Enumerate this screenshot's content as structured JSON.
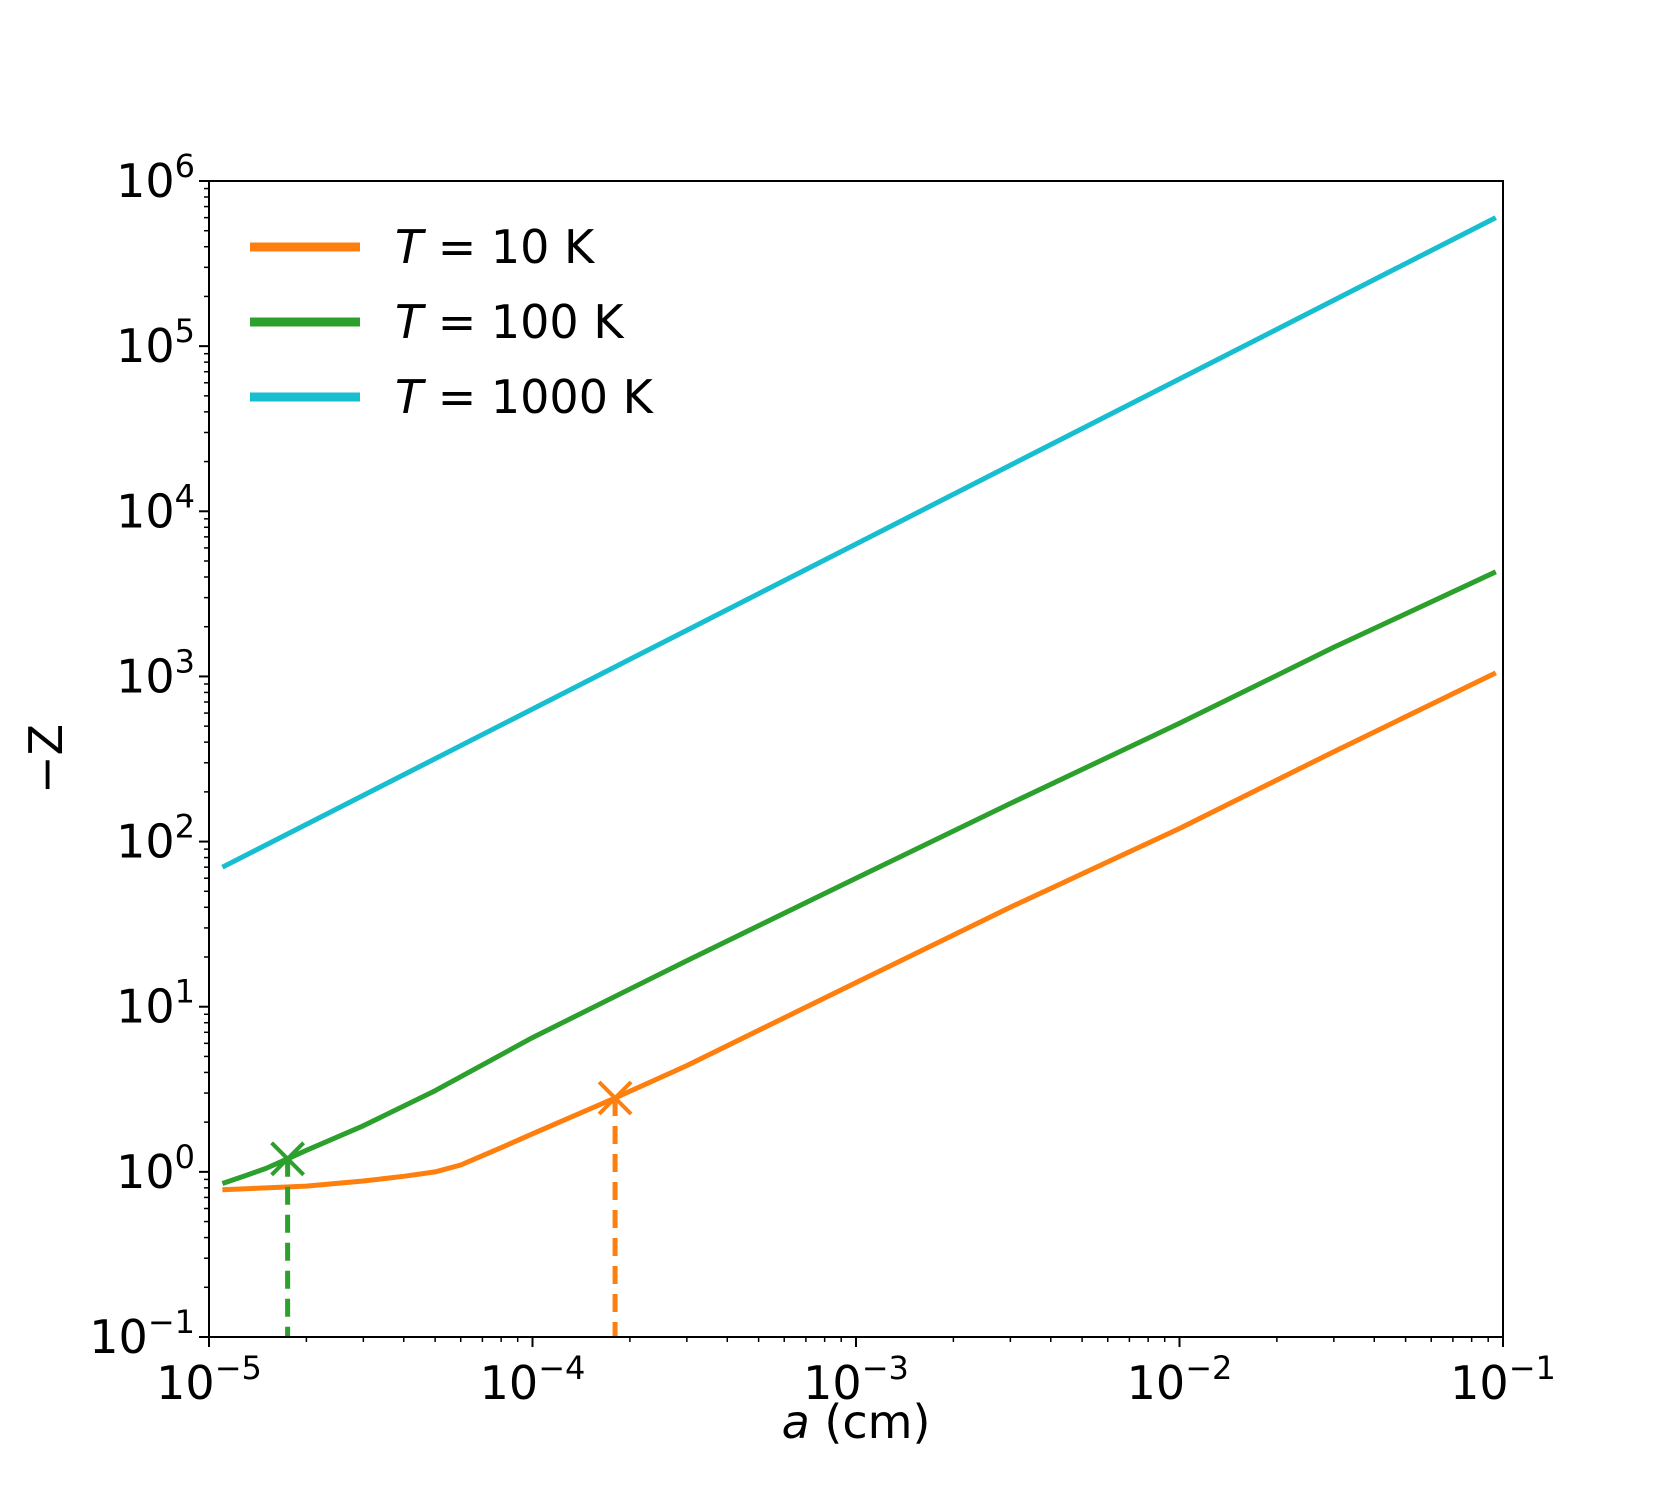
{
  "chart_data": {
    "type": "line",
    "title": "",
    "xlabel": {
      "var": "a",
      "unit": " (cm)"
    },
    "ylabel": "−Z",
    "xscale": "log",
    "yscale": "log",
    "xlim": [
      1e-05,
      0.1
    ],
    "ylim": [
      0.1,
      1000000
    ],
    "grid": false,
    "legend_position": "top-left",
    "x_ticks": [
      {
        "base": "10",
        "exp": "−5"
      },
      {
        "base": "10",
        "exp": "−4"
      },
      {
        "base": "10",
        "exp": "−3"
      },
      {
        "base": "10",
        "exp": "−2"
      },
      {
        "base": "10",
        "exp": "−1"
      }
    ],
    "y_ticks": [
      {
        "base": "10",
        "exp": "−1"
      },
      {
        "base": "10",
        "exp": "0"
      },
      {
        "base": "10",
        "exp": "1"
      },
      {
        "base": "10",
        "exp": "2"
      },
      {
        "base": "10",
        "exp": "3"
      },
      {
        "base": "10",
        "exp": "4"
      },
      {
        "base": "10",
        "exp": "5"
      },
      {
        "base": "10",
        "exp": "6"
      }
    ],
    "series": [
      {
        "name": "T = 10 K",
        "legend_var": "T",
        "legend_rest": " = 10 K",
        "color": "#ff7f0e",
        "x": [
          1.1e-05,
          1.5e-05,
          2e-05,
          3e-05,
          4e-05,
          5e-05,
          6e-05,
          8e-05,
          0.0001,
          0.00018,
          0.0003,
          0.001,
          0.003,
          0.01,
          0.03,
          0.095
        ],
        "y": [
          0.78,
          0.8,
          0.82,
          0.88,
          0.94,
          1.0,
          1.1,
          1.4,
          1.7,
          2.8,
          4.4,
          14,
          40,
          120,
          350,
          1050
        ]
      },
      {
        "name": "T = 100 K",
        "legend_var": "T",
        "legend_rest": " = 100 K",
        "color": "#2ca02c",
        "x": [
          1.1e-05,
          1.3e-05,
          1.5e-05,
          1.75e-05,
          2e-05,
          3e-05,
          5e-05,
          0.0001,
          0.0003,
          0.001,
          0.003,
          0.01,
          0.03,
          0.095
        ],
        "y": [
          0.85,
          0.95,
          1.05,
          1.2,
          1.35,
          1.9,
          3.1,
          6.5,
          19,
          60,
          170,
          520,
          1500,
          4300
        ]
      },
      {
        "name": "T = 1000 K",
        "legend_var": "T",
        "legend_rest": " = 1000 K",
        "color": "#17becf",
        "x": [
          1.1e-05,
          0.095
        ],
        "y": [
          70,
          600000
        ]
      }
    ],
    "markers": [
      {
        "series": "T = 100 K",
        "x": 1.75e-05,
        "y": 1.2,
        "color": "#2ca02c",
        "symbol": "x"
      },
      {
        "series": "T = 10 K",
        "x": 0.00018,
        "y": 2.8,
        "color": "#ff7f0e",
        "symbol": "x"
      }
    ]
  }
}
